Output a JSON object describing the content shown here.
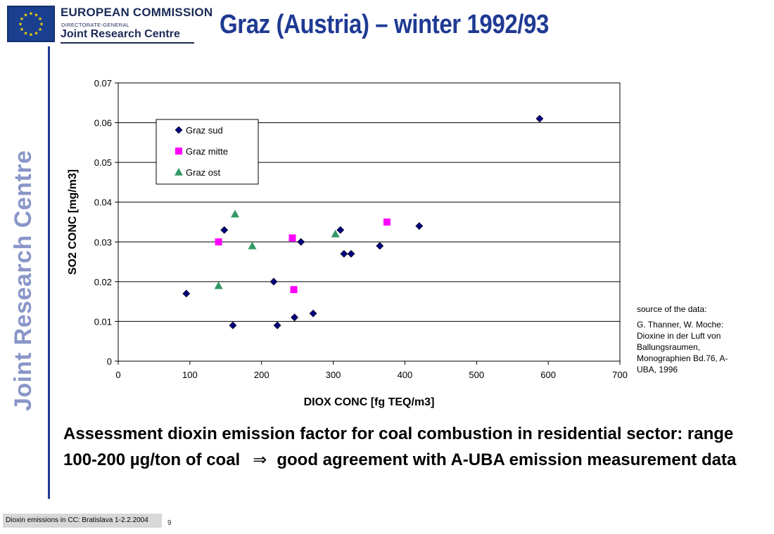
{
  "header": {
    "org_line1": "EUROPEAN COMMISSION",
    "org_line2": "DIRECTORATE-GENERAL",
    "org_line3": "Joint Research Centre",
    "title": "Graz (Austria) – winter 1992/93",
    "side_text": "Joint Research Centre"
  },
  "colors": {
    "title": "#1f3a93",
    "side_text": "#8a96c8",
    "series_sud": "#000080",
    "series_mitte": "#ff00ff",
    "series_ost": "#339966"
  },
  "chart_data": {
    "type": "scatter",
    "xlabel": "DIOX CONC [fg TEQ/m3]",
    "ylabel": "SO2 CONC [mg/m3]",
    "xlim": [
      0,
      700
    ],
    "ylim": [
      0,
      0.07
    ],
    "xticks": [
      "0",
      "100",
      "200",
      "300",
      "400",
      "500",
      "600",
      "700"
    ],
    "yticks": [
      "0",
      "0.01",
      "0.02",
      "0.03",
      "0.04",
      "0.05",
      "0.06",
      "0.07"
    ],
    "grid": "horizontal",
    "legend_position": "top-left",
    "series": [
      {
        "name": "Graz sud",
        "marker": "diamond",
        "color": "#000080",
        "points": [
          [
            95,
            0.017
          ],
          [
            148,
            0.033
          ],
          [
            160,
            0.009
          ],
          [
            217,
            0.02
          ],
          [
            222,
            0.009
          ],
          [
            246,
            0.011
          ],
          [
            255,
            0.03
          ],
          [
            272,
            0.012
          ],
          [
            310,
            0.033
          ],
          [
            315,
            0.027
          ],
          [
            325,
            0.027
          ],
          [
            365,
            0.029
          ],
          [
            420,
            0.034
          ],
          [
            588,
            0.061
          ]
        ]
      },
      {
        "name": "Graz mitte",
        "marker": "square",
        "color": "#ff00ff",
        "points": [
          [
            140,
            0.03
          ],
          [
            243,
            0.031
          ],
          [
            245,
            0.018
          ],
          [
            375,
            0.035
          ]
        ]
      },
      {
        "name": "Graz ost",
        "marker": "triangle",
        "color": "#339966",
        "points": [
          [
            140,
            0.019
          ],
          [
            163,
            0.037
          ],
          [
            187,
            0.029
          ],
          [
            303,
            0.032
          ]
        ]
      }
    ]
  },
  "source_note": {
    "heading": "source of the data:",
    "citation": "G. Thanner, W. Moche: Dioxine in der Luft von Ballungsraumen, Monographien Bd.76, A-UBA, 1996"
  },
  "conclusion": {
    "part1": "Assessment dioxin emission factor for coal combustion in residential sector: range 100-200 µg/ton of coal",
    "arrow": "⇒",
    "part2": "good agreement with A-UBA emission measurement data"
  },
  "footer": {
    "event": "Dioxin emissions in CC: Bratislava 1-2.2.2004",
    "page_number": "9"
  }
}
